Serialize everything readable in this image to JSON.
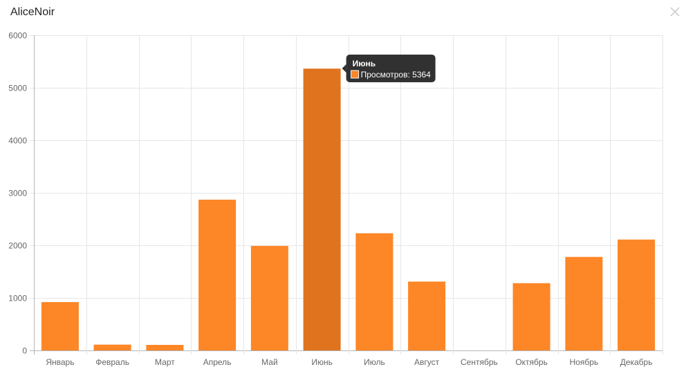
{
  "modal": {
    "title": "AliceNoir",
    "close_icon": "close-icon"
  },
  "colors": {
    "bar": "#fd8626",
    "bar_hover": "#e0731e",
    "grid": "#e6e6e6",
    "axis": "#b5b5b5",
    "tooltip_bg": "#1f1f1f"
  },
  "chart_data": {
    "type": "bar",
    "categories": [
      "Январь",
      "Февраль",
      "Март",
      "Апрель",
      "Май",
      "Июнь",
      "Июль",
      "Август",
      "Сентябрь",
      "Октябрь",
      "Ноябрь",
      "Декабрь"
    ],
    "series": [
      {
        "name": "Просмотров",
        "values": [
          920,
          110,
          105,
          2870,
          1990,
          5364,
          2230,
          1310,
          0,
          1280,
          1780,
          2110
        ]
      }
    ],
    "ylim": [
      0,
      6000
    ],
    "yticks": [
      0,
      1000,
      2000,
      3000,
      4000,
      5000,
      6000
    ],
    "grid": true,
    "legend": "none",
    "tooltip": {
      "category_index": 5,
      "title": "Июнь",
      "text": "Просмотров: 5364"
    }
  }
}
